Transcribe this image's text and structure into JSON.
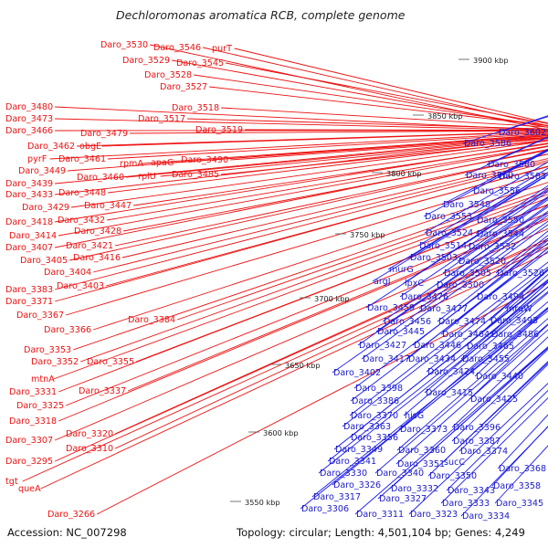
{
  "title": "Dechloromonas aromatica RCB, complete genome",
  "accession": "Accession: NC_007298",
  "summary": "Topology: circular; Length: 4,501,104 bp; Genes: 4,249",
  "colors": {
    "forward": "#ee1111",
    "reverse": "#1a1af0",
    "backbone": "#8a8a8a",
    "marker": "#228822"
  },
  "kbp_ticks": [
    "3900 kbp",
    "3850 kbp",
    "3800 kbp",
    "3750 kbp",
    "3700 kbp",
    "3650 kbp",
    "3600 kbp",
    "3550 kbp"
  ],
  "forward_labels": [
    "Daro_3530",
    "Daro_3546",
    "purT",
    "Daro_3529",
    "Daro_3545",
    "Daro_3528",
    "Daro_3527",
    "Daro_3518",
    "Daro_3517",
    "Daro_3519",
    "Daro_3480",
    "Daro_3473",
    "Daro_3479",
    "Daro_3466",
    "Daro_3462",
    "obgE",
    "pyrF",
    "Daro_3461",
    "rpmA",
    "apaG",
    "Daro_3490",
    "Daro_3449",
    "Daro_3460",
    "rplU",
    "Daro_3485",
    "Daro_3439",
    "Daro_3448",
    "Daro_3433",
    "Daro_3447",
    "Daro_3429",
    "Daro_3432",
    "Daro_3418",
    "Daro_3428",
    "Daro_3414",
    "Daro_3421",
    "Daro_3407",
    "Daro_3416",
    "Daro_3405",
    "Daro_3404",
    "Daro_3403",
    "Daro_3383",
    "Daro_3371",
    "Daro_3384",
    "Daro_3367",
    "Daro_3366",
    "Daro_3353",
    "Daro_3352",
    "Daro_3355",
    "mtnA",
    "Daro_3331",
    "Daro_3337",
    "Daro_3325",
    "Daro_3318",
    "Daro_3320",
    "Daro_3307",
    "Daro_3310",
    "Daro_3295",
    "tgt",
    "queA",
    "Daro_3266"
  ],
  "reverse_labels": [
    "Daro_3602",
    "Daro_3586",
    "Daro_3580",
    "Daro_3583",
    "Daro_3560",
    "Daro_3556",
    "Daro_3548",
    "Daro_3553",
    "Daro_3550",
    "Daro_3524",
    "Daro_3544",
    "Daro_3514",
    "Daro_3532",
    "Daro_3503",
    "Daro_3520",
    "murG",
    "Daro_3505",
    "Daro_3526",
    "argJ",
    "lpxC",
    "Daro_3500",
    "Daro_3476",
    "Daro_3494",
    "Daro_3459",
    "Daro_3477",
    "mraW",
    "Daro_3456",
    "Daro_3474",
    "Daro_3493",
    "Daro_3445",
    "Daro_3464",
    "Daro_3486",
    "Daro_3427",
    "Daro_3446",
    "Daro_3465",
    "Daro_3417",
    "Daro_3434",
    "Daro_3455",
    "Daro_3402",
    "Daro_3424",
    "Daro_3440",
    "Daro_3398",
    "Daro_3415",
    "Daro_3386",
    "Daro_3425",
    "Daro_3370",
    "hisG",
    "Daro_3363",
    "Daro_3373",
    "Daro_3396",
    "Daro_3356",
    "Daro_3387",
    "Daro_3349",
    "Daro_3360",
    "Daro_3374",
    "Daro_3341",
    "Daro_3351",
    "sucC",
    "Daro_3368",
    "Daro_3330",
    "Daro_3340",
    "Daro_3350",
    "Daro_3326",
    "Daro_3332",
    "Daro_3343",
    "Daro_3358",
    "Daro_3317",
    "Daro_3327",
    "Daro_3333",
    "Daro_3345",
    "Daro_3306",
    "Daro_3311",
    "Daro_3323",
    "Daro_3334"
  ]
}
